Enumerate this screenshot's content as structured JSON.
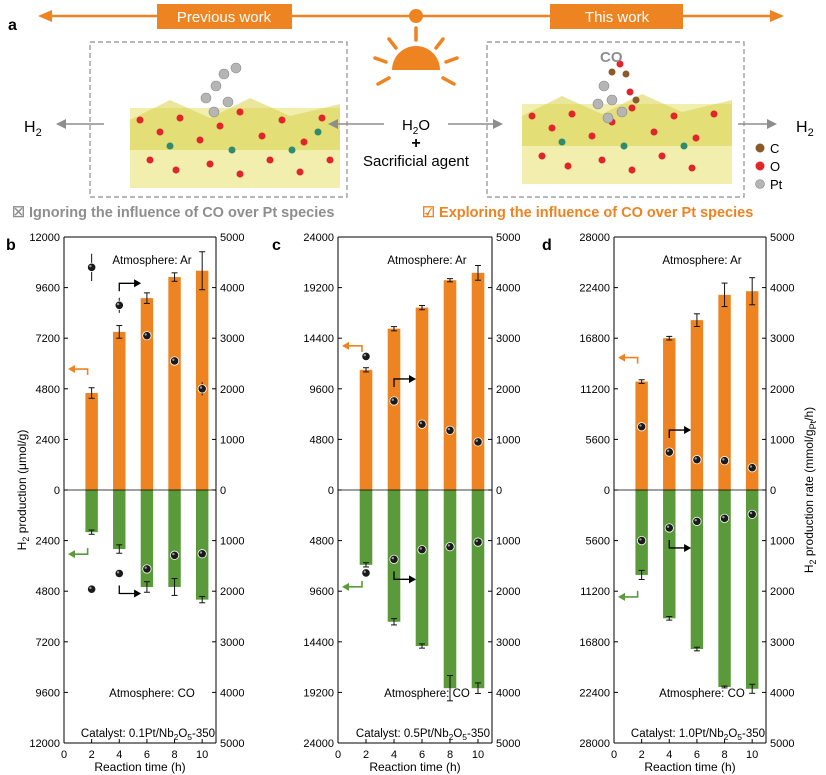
{
  "panel_a": {
    "letter": "a",
    "previous_work": "Previous work",
    "this_work": "This work",
    "h2_left": "H",
    "h2_right": "H",
    "h2_sub": "2",
    "water": "H",
    "water_sub": "2",
    "water_end": "O",
    "plus": "+",
    "sacrificial": "Sacrificial agent",
    "co_label": "CO",
    "legend": [
      "C",
      "O",
      "Pt"
    ],
    "caption_left": "☒ Ignoring the influence of CO over Pt species",
    "caption_right": "☑ Exploring the influence of CO over Pt species",
    "colors": {
      "orange": "#EE8322",
      "green": "#5A9A3A",
      "gray": "#8E8E8E"
    }
  },
  "common": {
    "atm_ar": "Atmosphere: Ar",
    "atm_co": "Atmosphere: CO",
    "xlabel": "Reaction time (h)",
    "ylabel_left_main": "H",
    "ylabel_left_sub": "2",
    "ylabel_left_rest": " production (μmol/g)",
    "ylabel_right_main": "H",
    "ylabel_right_sub": "2",
    "ylabel_right_rest1": " production rate (mmol/g",
    "ylabel_right_sub2": "Pt",
    "ylabel_right_rest2": "/h)"
  },
  "chart_data": [
    {
      "type": "bar",
      "letter": "b",
      "catalyst_pre": "Catalyst: 0.1Pt/Nb",
      "catalyst_sub1": "2",
      "catalyst_mid": "O",
      "catalyst_sub2": "5",
      "catalyst_post": "-350",
      "x": [
        2,
        4,
        6,
        8,
        10
      ],
      "xticks": [
        "0",
        "2",
        "4",
        "6",
        "8",
        "10"
      ],
      "ylim": [
        -12000,
        12000
      ],
      "yticks_left": [
        "12000",
        "9600",
        "7200",
        "4800",
        "2400",
        "0",
        "2400",
        "4800",
        "7200",
        "9600",
        "12000"
      ],
      "yticks_right": [
        "5000",
        "4000",
        "3000",
        "2000",
        "1000",
        "0",
        "1000",
        "2000",
        "3000",
        "4000",
        "5000"
      ],
      "rate_max": 5000,
      "series": [
        {
          "atmosphere": "Ar",
          "color": "#EE8322",
          "production": [
            4600,
            7500,
            9100,
            10100,
            10400
          ],
          "production_err": [
            250,
            300,
            250,
            200,
            900
          ],
          "rate": [
            4400,
            3650,
            3050,
            2550,
            2000
          ],
          "rate_err": [
            270,
            150,
            80,
            60,
            130
          ]
        },
        {
          "atmosphere": "CO",
          "color": "#5A9A3A",
          "production": [
            -2000,
            -2800,
            -4600,
            -4600,
            -5200
          ],
          "production_err": [
            100,
            200,
            250,
            400,
            150
          ],
          "rate": [
            -1960,
            -1650,
            -1560,
            -1290,
            -1260
          ],
          "rate_err": [
            40,
            70,
            60,
            50,
            50
          ]
        }
      ]
    },
    {
      "type": "bar",
      "letter": "c",
      "catalyst_pre": "Catalyst: 0.5Pt/Nb",
      "catalyst_sub1": "2",
      "catalyst_mid": "O",
      "catalyst_sub2": "5",
      "catalyst_post": "-350",
      "x": [
        2,
        4,
        6,
        8,
        10
      ],
      "xticks": [
        "0",
        "2",
        "4",
        "6",
        "8",
        "10"
      ],
      "ylim": [
        -24000,
        24000
      ],
      "yticks_left": [
        "24000",
        "19200",
        "14400",
        "9600",
        "4800",
        "0",
        "4800",
        "9600",
        "14400",
        "19200",
        "24000"
      ],
      "yticks_right": [
        "5000",
        "4000",
        "3000",
        "2000",
        "1000",
        "0",
        "1000",
        "2000",
        "3000",
        "4000",
        "5000"
      ],
      "rate_max": 5000,
      "series": [
        {
          "atmosphere": "Ar",
          "color": "#EE8322",
          "production": [
            11400,
            15300,
            17300,
            19900,
            20600
          ],
          "production_err": [
            200,
            200,
            200,
            150,
            700
          ],
          "rate": [
            2640,
            1760,
            1300,
            1180,
            950
          ],
          "rate_err": [
            60,
            40,
            30,
            30,
            30
          ]
        },
        {
          "atmosphere": "CO",
          "color": "#5A9A3A",
          "production": [
            -7100,
            -12500,
            -14800,
            -18800,
            -18800
          ],
          "production_err": [
            200,
            300,
            200,
            1200,
            500
          ],
          "rate": [
            -1640,
            -1370,
            -1180,
            -1120,
            -1030
          ],
          "rate_err": [
            60,
            40,
            40,
            30,
            30
          ]
        }
      ]
    },
    {
      "type": "bar",
      "letter": "d",
      "catalyst_pre": "Catalyst: 1.0Pt/Nb",
      "catalyst_sub1": "2",
      "catalyst_mid": "O",
      "catalyst_sub2": "5",
      "catalyst_post": "-350",
      "x": [
        2,
        4,
        6,
        8,
        10
      ],
      "xticks": [
        "0",
        "2",
        "4",
        "6",
        "8",
        "10"
      ],
      "ylim": [
        -28000,
        28000
      ],
      "yticks_left": [
        "28000",
        "22400",
        "16800",
        "11200",
        "5600",
        "0",
        "5600",
        "11200",
        "16800",
        "22400",
        "28000"
      ],
      "yticks_right": [
        "5000",
        "4000",
        "3000",
        "2000",
        "1000",
        "0",
        "1000",
        "2000",
        "3000",
        "4000",
        "5000"
      ],
      "rate_max": 5000,
      "series": [
        {
          "atmosphere": "Ar",
          "color": "#EE8322",
          "production": [
            12000,
            16800,
            18800,
            21600,
            22000
          ],
          "production_err": [
            200,
            200,
            700,
            1300,
            1500
          ],
          "rate": [
            1250,
            750,
            600,
            580,
            440
          ],
          "rate_err": [
            50,
            30,
            30,
            30,
            30
          ]
        },
        {
          "atmosphere": "CO",
          "color": "#5A9A3A",
          "production": [
            -9400,
            -14200,
            -17600,
            -21800,
            -22000
          ],
          "production_err": [
            500,
            200,
            200,
            100,
            500
          ],
          "rate": [
            -1000,
            -750,
            -620,
            -560,
            -480
          ],
          "rate_err": [
            40,
            30,
            30,
            30,
            30
          ]
        }
      ]
    }
  ]
}
